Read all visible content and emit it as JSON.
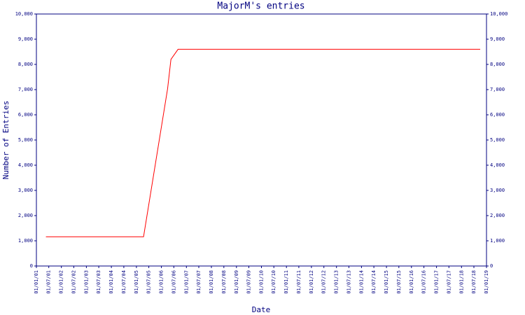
{
  "chart_data": {
    "type": "line",
    "title": "MajorM's entries",
    "xlabel": "Date",
    "ylabel": "Number of Entries",
    "x": [
      "2001-05-20",
      "2005-04-15",
      "2006-04-01",
      "2006-05-20",
      "2006-09-01",
      "2018-10-01"
    ],
    "series": [
      {
        "name": "MajorM",
        "color": "#ff0000",
        "values": [
          1160,
          1160,
          7030,
          8200,
          8600,
          8600
        ]
      }
    ],
    "xlim": [
      "2001-01-01",
      "2019-01-01"
    ],
    "xticks": [
      {
        "value": "2001-01-01",
        "label": "01/01/01"
      },
      {
        "value": "2001-07-01",
        "label": "01/07/01"
      },
      {
        "value": "2002-01-01",
        "label": "01/01/02"
      },
      {
        "value": "2002-07-01",
        "label": "01/07/02"
      },
      {
        "value": "2003-01-01",
        "label": "01/01/03"
      },
      {
        "value": "2003-07-01",
        "label": "01/07/03"
      },
      {
        "value": "2004-01-01",
        "label": "01/01/04"
      },
      {
        "value": "2004-07-01",
        "label": "01/07/04"
      },
      {
        "value": "2005-01-01",
        "label": "01/01/05"
      },
      {
        "value": "2005-07-01",
        "label": "01/07/05"
      },
      {
        "value": "2006-01-01",
        "label": "01/01/06"
      },
      {
        "value": "2006-07-01",
        "label": "01/07/06"
      },
      {
        "value": "2007-01-01",
        "label": "01/01/07"
      },
      {
        "value": "2007-07-01",
        "label": "01/07/07"
      },
      {
        "value": "2008-01-01",
        "label": "01/01/08"
      },
      {
        "value": "2008-07-01",
        "label": "01/07/08"
      },
      {
        "value": "2009-01-01",
        "label": "01/01/09"
      },
      {
        "value": "2009-07-01",
        "label": "01/07/09"
      },
      {
        "value": "2010-01-01",
        "label": "01/01/10"
      },
      {
        "value": "2010-07-01",
        "label": "01/07/10"
      },
      {
        "value": "2011-01-01",
        "label": "01/01/11"
      },
      {
        "value": "2011-07-01",
        "label": "01/07/11"
      },
      {
        "value": "2012-01-01",
        "label": "01/01/12"
      },
      {
        "value": "2012-07-01",
        "label": "01/07/12"
      },
      {
        "value": "2013-01-01",
        "label": "01/01/13"
      },
      {
        "value": "2013-07-01",
        "label": "01/07/13"
      },
      {
        "value": "2014-01-01",
        "label": "01/01/14"
      },
      {
        "value": "2014-07-01",
        "label": "01/07/14"
      },
      {
        "value": "2015-01-01",
        "label": "01/01/15"
      },
      {
        "value": "2015-07-01",
        "label": "01/07/15"
      },
      {
        "value": "2016-01-01",
        "label": "01/01/16"
      },
      {
        "value": "2016-07-01",
        "label": "01/07/16"
      },
      {
        "value": "2017-01-01",
        "label": "01/01/17"
      },
      {
        "value": "2017-07-01",
        "label": "01/07/17"
      },
      {
        "value": "2018-01-01",
        "label": "01/01/18"
      },
      {
        "value": "2018-07-01",
        "label": "01/07/18"
      },
      {
        "value": "2019-01-01",
        "label": "01/01/19"
      }
    ],
    "ylim": [
      0,
      10000
    ],
    "yticks": [
      0,
      {
        "value": 1000,
        "label": "1,000"
      },
      {
        "value": 2000,
        "label": "2,000"
      },
      {
        "value": 3000,
        "label": "3,000"
      },
      {
        "value": 4000,
        "label": "4,000"
      },
      {
        "value": 5000,
        "label": "5,000"
      },
      {
        "value": 6000,
        "label": "6,000"
      },
      {
        "value": 7000,
        "label": "7,000"
      },
      {
        "value": 8000,
        "label": "8,000"
      },
      {
        "value": 9000,
        "label": "9,000"
      },
      {
        "value": 10000,
        "label": "10,000"
      }
    ],
    "grid": false
  }
}
